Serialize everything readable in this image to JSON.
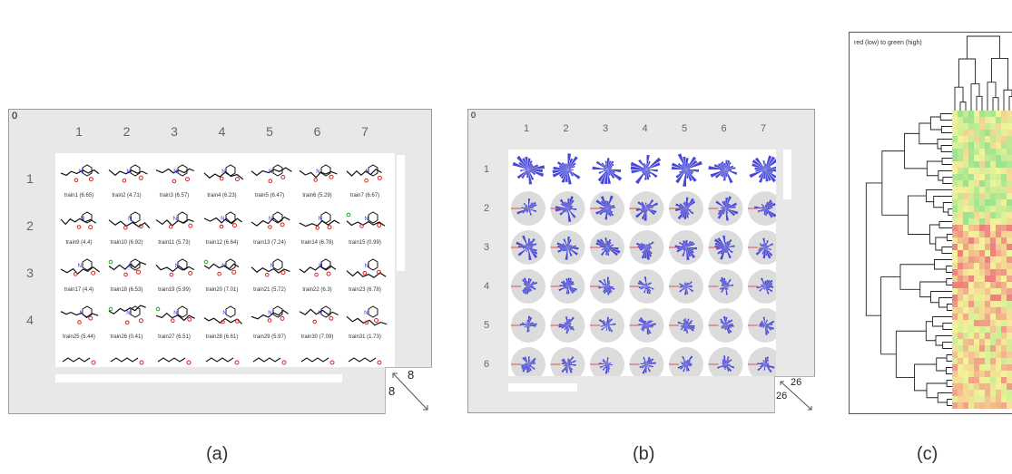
{
  "panel_a": {
    "zero": "0",
    "columns": [
      "1",
      "2",
      "3",
      "4",
      "5",
      "6",
      "7"
    ],
    "rows": [
      "1",
      "2",
      "3",
      "4"
    ],
    "labels": [
      [
        "train1 (6.65)",
        "train2 (4.71)",
        "train3 (6.57)",
        "train4 (6.23)",
        "train5 (6.47)",
        "train6 (5.29)",
        "train7 (6.67)"
      ],
      [
        "train9 (4.4)",
        "train10 (6.92)",
        "train11 (5.73)",
        "train12 (6.64)",
        "train13 (7.24)",
        "train14 (6.78)",
        "train15 (0.99)"
      ],
      [
        "train17 (4.4)",
        "train18 (6.53)",
        "train19 (5.99)",
        "train20 (7.01)",
        "train21 (5.72)",
        "train22 (6.3)",
        "train23 (6.78)"
      ],
      [
        "train25 (5.44)",
        "train26 (0.41)",
        "train27 (6.51)",
        "train28 (6.61)",
        "train29 (5.97)",
        "train30 (7.09)",
        "train31 (1.73)"
      ]
    ],
    "corner_top": "8",
    "corner_left": "8",
    "caption": "(a)"
  },
  "panel_b": {
    "zero": "0",
    "columns": [
      "1",
      "2",
      "3",
      "4",
      "5",
      "6",
      "7"
    ],
    "rows": [
      "1",
      "2",
      "3",
      "4",
      "5",
      "6"
    ],
    "corner_top": "26",
    "corner_left": "26",
    "caption": "(b)"
  },
  "panel_c": {
    "legend": "red (low) to green (high)",
    "caption": "(c)"
  },
  "colors": {
    "panel_bg": "#e8e8e8",
    "glyph_blue": "#4848d8",
    "heat_red": "#f08080",
    "heat_yellow": "#f4f49a",
    "heat_green": "#8ee08e"
  }
}
